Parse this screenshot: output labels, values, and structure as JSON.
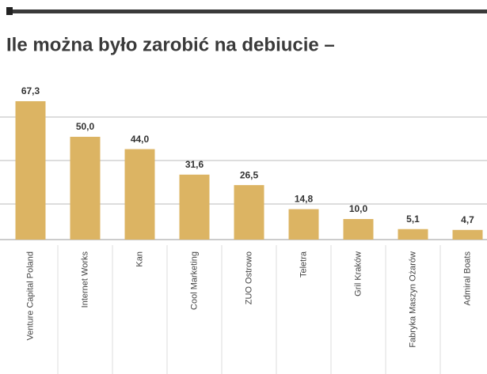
{
  "chart_data": {
    "type": "bar",
    "title": "Ile można było zarobić na debiucie –",
    "categories": [
      "Venture Capital Poland",
      "Internet Works",
      "Kan",
      "Cool Marketing",
      "ZUO Ostrowo",
      "Teletra",
      "Gril Kraków",
      "Fabryka Maszyn Ożarów",
      "Admiral Boats"
    ],
    "values": [
      67.3,
      50.0,
      44.0,
      31.6,
      26.5,
      14.8,
      10.0,
      5.1,
      4.7
    ],
    "value_labels": [
      "67,3",
      "50,0",
      "44,0",
      "31,6",
      "26,5",
      "14,8",
      "10,0",
      "5,1",
      "4,7"
    ],
    "color": "#dcb463",
    "ylim": [
      0,
      70
    ]
  }
}
